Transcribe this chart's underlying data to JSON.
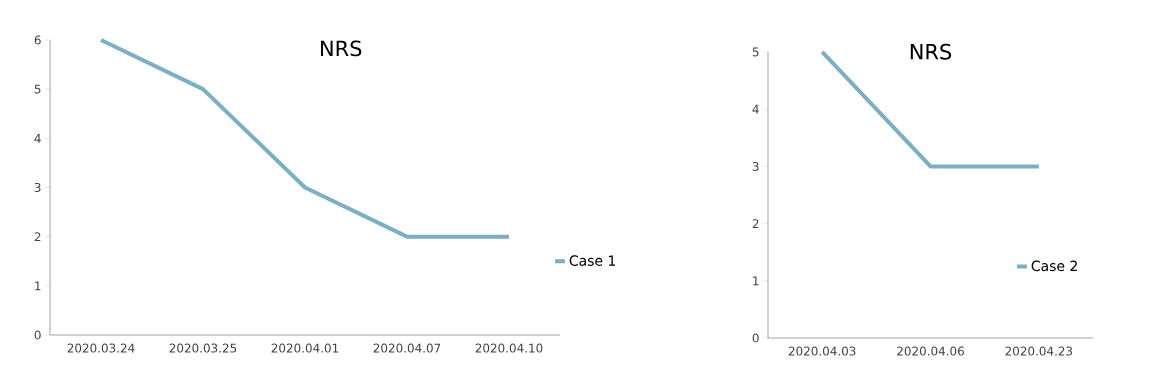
{
  "chart_data": [
    {
      "type": "line",
      "title": "NRS",
      "categories": [
        "2020.03.24",
        "2020.03.25",
        "2020.04.01",
        "2020.04.07",
        "2020.04.10"
      ],
      "series": [
        {
          "name": "Case 1",
          "color": "#7aafc5",
          "values": [
            6,
            5,
            3,
            2,
            2
          ]
        }
      ],
      "ylim": [
        0,
        6
      ],
      "yticks": [
        0,
        1,
        2,
        3,
        4,
        5,
        6
      ],
      "legend": "right"
    },
    {
      "type": "line",
      "title": "NRS",
      "categories": [
        "2020.04.03",
        "2020.04.06",
        "2020.04.23"
      ],
      "series": [
        {
          "name": "Case 2",
          "color": "#7aafc5",
          "values": [
            5,
            3,
            3
          ]
        }
      ],
      "ylim": [
        0,
        5
      ],
      "yticks": [
        0,
        1,
        2,
        3,
        4,
        5
      ],
      "legend": "right"
    }
  ]
}
